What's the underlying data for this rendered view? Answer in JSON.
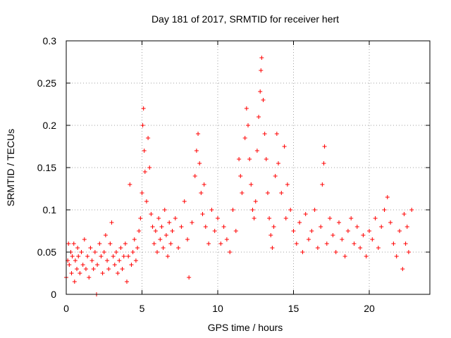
{
  "chart_data": {
    "type": "scatter",
    "title": "Day 181 of 2017, SRMTID for receiver hert",
    "xlabel": "GPS time / hours",
    "ylabel": "SRMTID / TECUs",
    "xlim": [
      0,
      24
    ],
    "ylim": [
      0,
      0.3
    ],
    "xticks": [
      0,
      5,
      10,
      15,
      20
    ],
    "xtick_labels": [
      "0",
      "5",
      "10",
      "15",
      "20"
    ],
    "yticks": [
      0,
      0.05,
      0.1,
      0.15,
      0.2,
      0.25,
      0.3
    ],
    "ytick_labels": [
      "0",
      "0.05",
      "0.1",
      "0.15",
      "0.2",
      "0.25",
      "0.3"
    ],
    "grid": true,
    "marker": "plus",
    "color": "#ff0000",
    "series": [
      {
        "name": "SRMTID",
        "points": [
          [
            0.0,
            0.02
          ],
          [
            0.1,
            0.04
          ],
          [
            0.15,
            0.06
          ],
          [
            0.2,
            0.035
          ],
          [
            0.3,
            0.05
          ],
          [
            0.35,
            0.025
          ],
          [
            0.4,
            0.045
          ],
          [
            0.5,
            0.06
          ],
          [
            0.55,
            0.015
          ],
          [
            0.6,
            0.04
          ],
          [
            0.7,
            0.03
          ],
          [
            0.75,
            0.055
          ],
          [
            0.8,
            0.045
          ],
          [
            0.9,
            0.025
          ],
          [
            1.0,
            0.05
          ],
          [
            1.1,
            0.035
          ],
          [
            1.2,
            0.065
          ],
          [
            1.3,
            0.03
          ],
          [
            1.4,
            0.045
          ],
          [
            1.5,
            0.02
          ],
          [
            1.6,
            0.055
          ],
          [
            1.7,
            0.04
          ],
          [
            1.8,
            0.03
          ],
          [
            1.9,
            0.05
          ],
          [
            2.0,
            0.0
          ],
          [
            2.05,
            0.035
          ],
          [
            2.2,
            0.06
          ],
          [
            2.3,
            0.045
          ],
          [
            2.4,
            0.025
          ],
          [
            2.5,
            0.05
          ],
          [
            2.6,
            0.07
          ],
          [
            2.7,
            0.04
          ],
          [
            2.8,
            0.03
          ],
          [
            2.9,
            0.06
          ],
          [
            3.0,
            0.085
          ],
          [
            3.1,
            0.045
          ],
          [
            3.2,
            0.035
          ],
          [
            3.3,
            0.05
          ],
          [
            3.4,
            0.025
          ],
          [
            3.5,
            0.04
          ],
          [
            3.6,
            0.055
          ],
          [
            3.7,
            0.03
          ],
          [
            3.8,
            0.045
          ],
          [
            3.9,
            0.06
          ],
          [
            4.0,
            0.015
          ],
          [
            4.1,
            0.045
          ],
          [
            4.2,
            0.13
          ],
          [
            4.3,
            0.035
          ],
          [
            4.4,
            0.05
          ],
          [
            4.5,
            0.065
          ],
          [
            4.6,
            0.04
          ],
          [
            4.7,
            0.055
          ],
          [
            4.8,
            0.075
          ],
          [
            4.9,
            0.09
          ],
          [
            5.0,
            0.12
          ],
          [
            5.05,
            0.2
          ],
          [
            5.1,
            0.22
          ],
          [
            5.15,
            0.17
          ],
          [
            5.2,
            0.145
          ],
          [
            5.3,
            0.11
          ],
          [
            5.4,
            0.185
          ],
          [
            5.5,
            0.15
          ],
          [
            5.6,
            0.095
          ],
          [
            5.7,
            0.08
          ],
          [
            5.8,
            0.06
          ],
          [
            5.9,
            0.075
          ],
          [
            6.0,
            0.05
          ],
          [
            6.1,
            0.09
          ],
          [
            6.2,
            0.065
          ],
          [
            6.3,
            0.08
          ],
          [
            6.4,
            0.055
          ],
          [
            6.5,
            0.1
          ],
          [
            6.6,
            0.07
          ],
          [
            6.7,
            0.045
          ],
          [
            6.8,
            0.085
          ],
          [
            6.9,
            0.06
          ],
          [
            7.0,
            0.075
          ],
          [
            7.2,
            0.09
          ],
          [
            7.4,
            0.055
          ],
          [
            7.6,
            0.08
          ],
          [
            7.8,
            0.11
          ],
          [
            8.0,
            0.065
          ],
          [
            8.1,
            0.02
          ],
          [
            8.3,
            0.085
          ],
          [
            8.5,
            0.14
          ],
          [
            8.6,
            0.17
          ],
          [
            8.7,
            0.19
          ],
          [
            8.8,
            0.155
          ],
          [
            8.9,
            0.12
          ],
          [
            9.0,
            0.095
          ],
          [
            9.1,
            0.13
          ],
          [
            9.2,
            0.08
          ],
          [
            9.4,
            0.06
          ],
          [
            9.6,
            0.1
          ],
          [
            9.8,
            0.075
          ],
          [
            10.0,
            0.09
          ],
          [
            10.2,
            0.06
          ],
          [
            10.4,
            0.08
          ],
          [
            10.6,
            0.065
          ],
          [
            10.8,
            0.05
          ],
          [
            11.0,
            0.1
          ],
          [
            11.2,
            0.075
          ],
          [
            11.4,
            0.16
          ],
          [
            11.5,
            0.14
          ],
          [
            11.6,
            0.12
          ],
          [
            11.8,
            0.185
          ],
          [
            11.9,
            0.22
          ],
          [
            12.0,
            0.2
          ],
          [
            12.1,
            0.16
          ],
          [
            12.2,
            0.13
          ],
          [
            12.3,
            0.1
          ],
          [
            12.4,
            0.09
          ],
          [
            12.5,
            0.11
          ],
          [
            12.6,
            0.17
          ],
          [
            12.7,
            0.21
          ],
          [
            12.8,
            0.24
          ],
          [
            12.85,
            0.265
          ],
          [
            12.9,
            0.28
          ],
          [
            13.0,
            0.23
          ],
          [
            13.1,
            0.19
          ],
          [
            13.2,
            0.16
          ],
          [
            13.3,
            0.12
          ],
          [
            13.4,
            0.09
          ],
          [
            13.5,
            0.07
          ],
          [
            13.6,
            0.055
          ],
          [
            13.7,
            0.08
          ],
          [
            13.8,
            0.14
          ],
          [
            13.9,
            0.19
          ],
          [
            14.0,
            0.155
          ],
          [
            14.2,
            0.12
          ],
          [
            14.4,
            0.175
          ],
          [
            14.5,
            0.09
          ],
          [
            14.6,
            0.13
          ],
          [
            14.8,
            0.1
          ],
          [
            15.0,
            0.075
          ],
          [
            15.2,
            0.06
          ],
          [
            15.4,
            0.085
          ],
          [
            15.6,
            0.05
          ],
          [
            15.8,
            0.095
          ],
          [
            16.0,
            0.065
          ],
          [
            16.2,
            0.075
          ],
          [
            16.4,
            0.1
          ],
          [
            16.6,
            0.055
          ],
          [
            16.8,
            0.08
          ],
          [
            16.9,
            0.13
          ],
          [
            17.0,
            0.155
          ],
          [
            17.05,
            0.175
          ],
          [
            17.2,
            0.06
          ],
          [
            17.4,
            0.09
          ],
          [
            17.6,
            0.07
          ],
          [
            17.8,
            0.05
          ],
          [
            18.0,
            0.085
          ],
          [
            18.2,
            0.065
          ],
          [
            18.4,
            0.045
          ],
          [
            18.6,
            0.075
          ],
          [
            18.8,
            0.09
          ],
          [
            19.0,
            0.06
          ],
          [
            19.2,
            0.08
          ],
          [
            19.4,
            0.055
          ],
          [
            19.6,
            0.07
          ],
          [
            19.8,
            0.045
          ],
          [
            20.0,
            0.075
          ],
          [
            20.2,
            0.065
          ],
          [
            20.4,
            0.09
          ],
          [
            20.6,
            0.055
          ],
          [
            20.8,
            0.08
          ],
          [
            21.0,
            0.1
          ],
          [
            21.2,
            0.115
          ],
          [
            21.4,
            0.085
          ],
          [
            21.6,
            0.06
          ],
          [
            21.8,
            0.045
          ],
          [
            22.0,
            0.075
          ],
          [
            22.2,
            0.03
          ],
          [
            22.3,
            0.095
          ],
          [
            22.4,
            0.06
          ],
          [
            22.5,
            0.08
          ],
          [
            22.6,
            0.05
          ],
          [
            22.8,
            0.1
          ]
        ]
      }
    ]
  }
}
